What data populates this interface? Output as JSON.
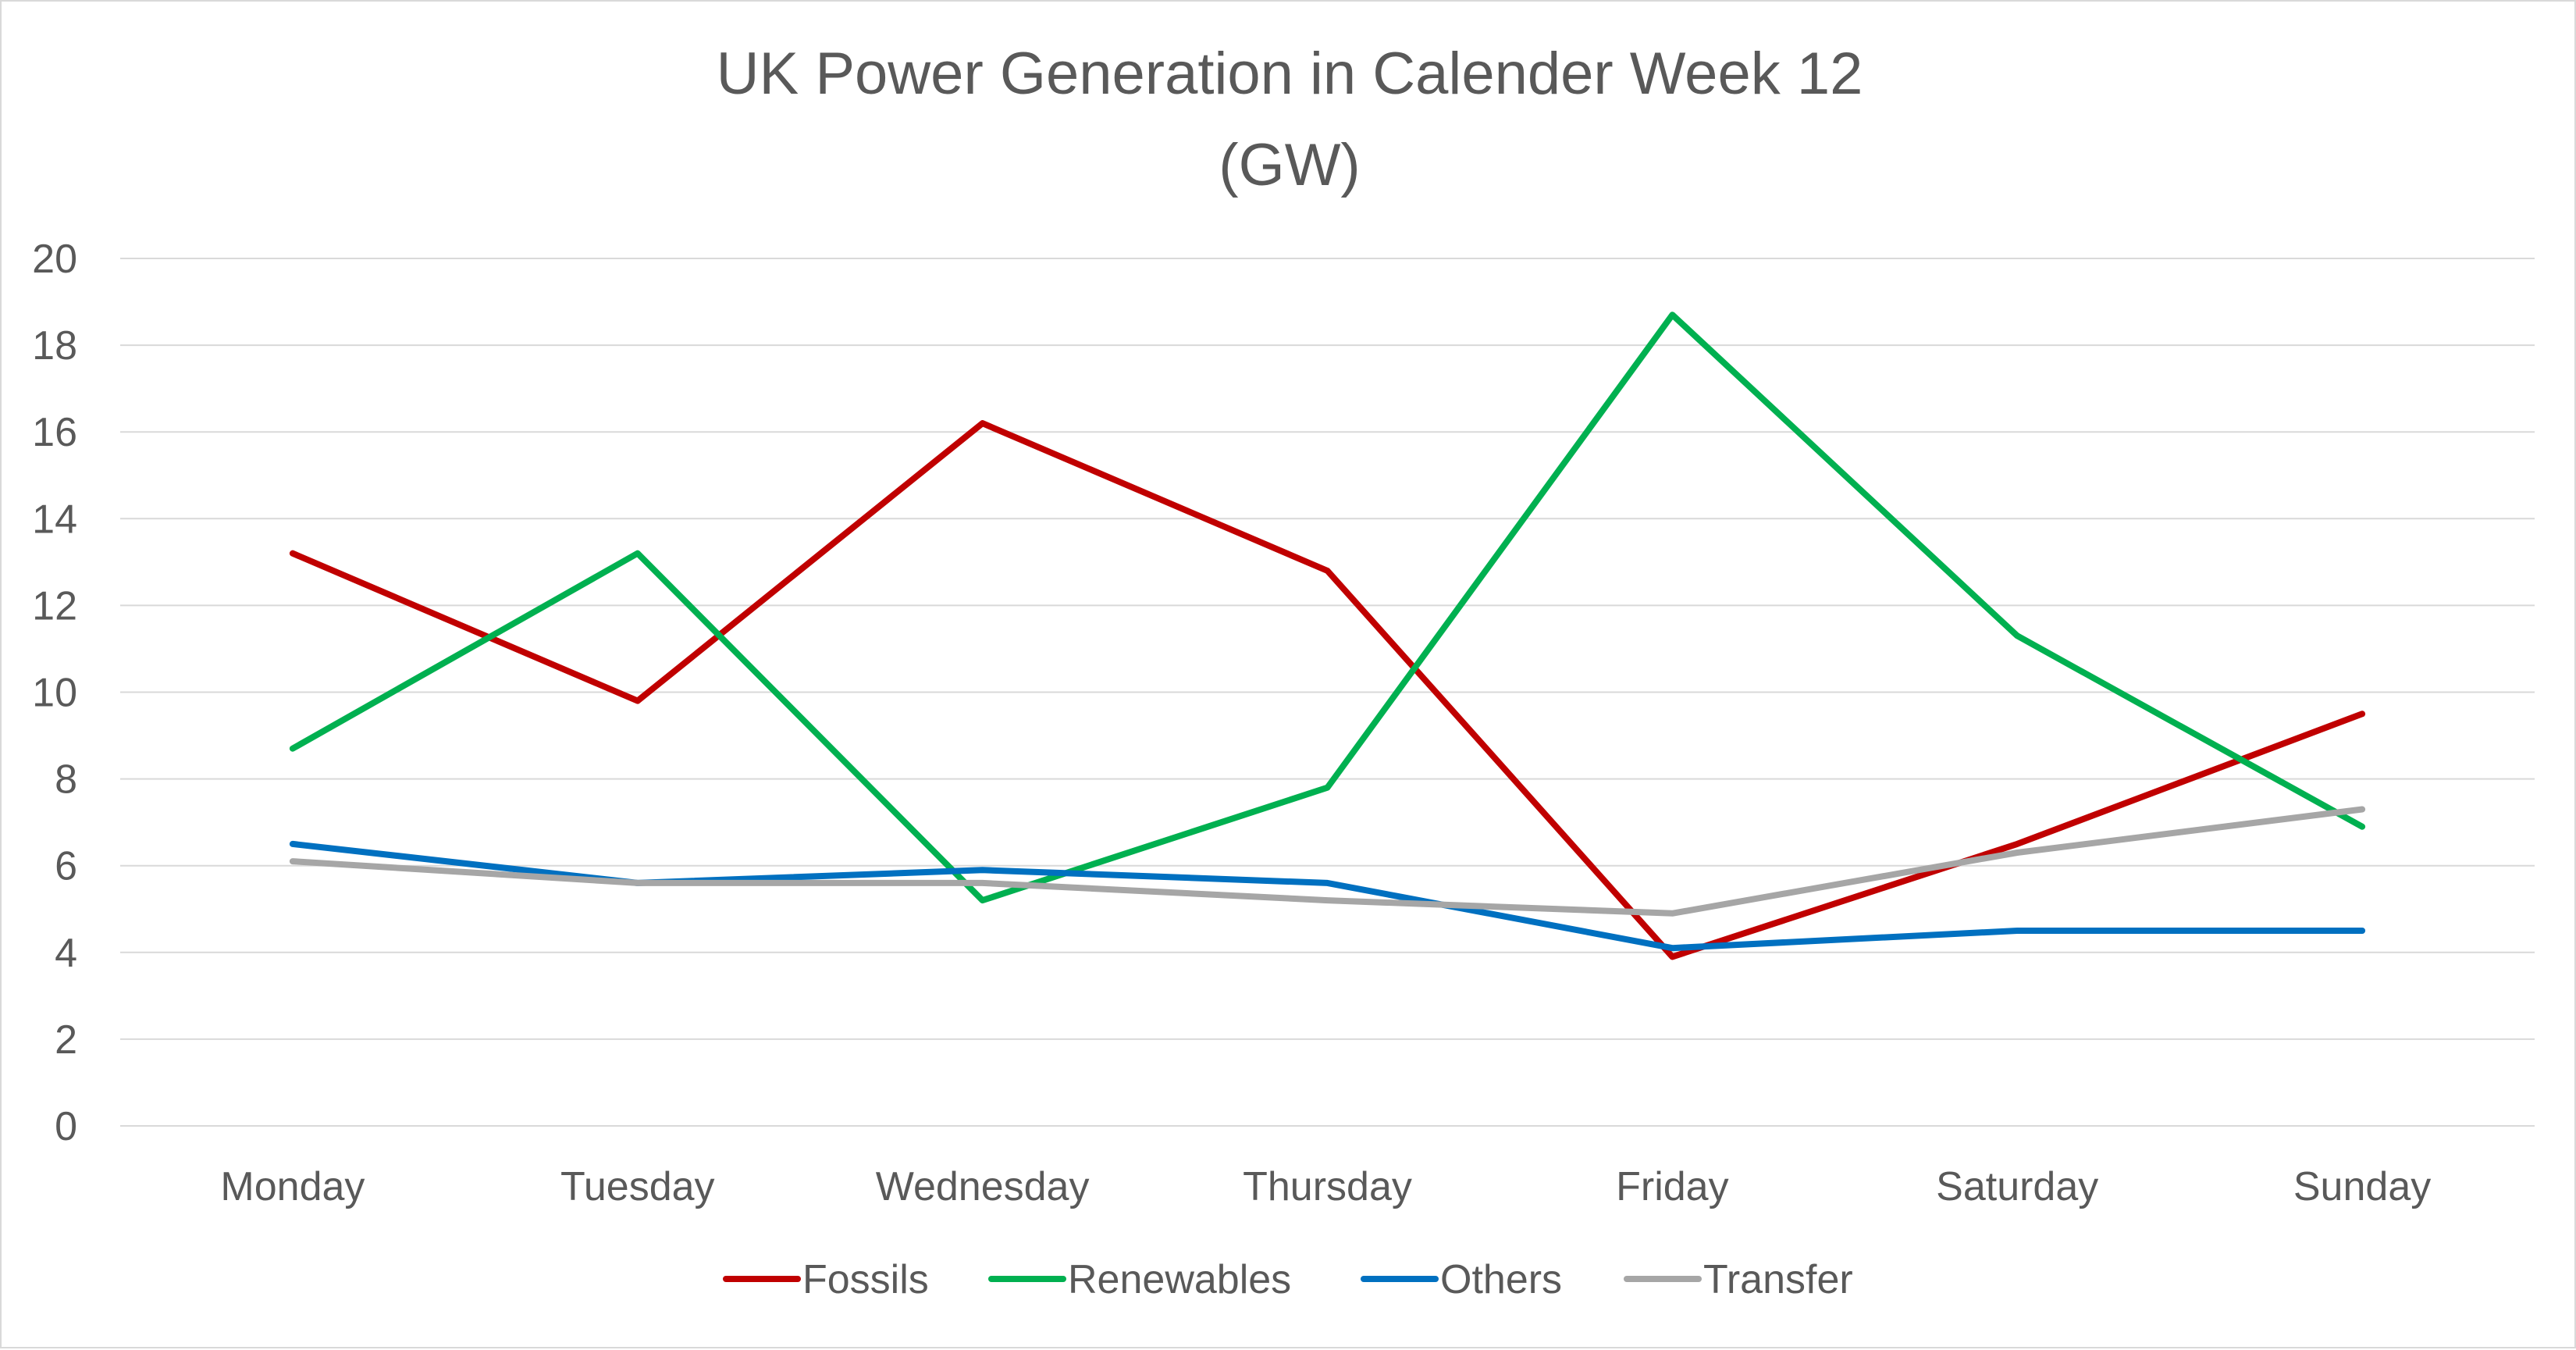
{
  "chart_data": {
    "type": "line",
    "title": "UK Power Generation in Calender Week 12",
    "subtitle": "(GW)",
    "xlabel": "",
    "ylabel": "",
    "categories": [
      "Monday",
      "Tuesday",
      "Wednesday",
      "Thursday",
      "Friday",
      "Saturday",
      "Sunday"
    ],
    "ylim": [
      0,
      20
    ],
    "yticks": [
      0,
      2,
      4,
      6,
      8,
      10,
      12,
      14,
      16,
      18,
      20
    ],
    "grid": true,
    "legend_position": "bottom",
    "series": [
      {
        "name": "Fossils",
        "color": "#c00000",
        "values": [
          13.2,
          9.8,
          16.2,
          12.8,
          3.9,
          6.5,
          9.5
        ]
      },
      {
        "name": "Renewables",
        "color": "#00b050",
        "values": [
          8.7,
          13.2,
          5.2,
          7.8,
          18.7,
          11.3,
          6.9
        ]
      },
      {
        "name": "Others",
        "color": "#0070c0",
        "values": [
          6.5,
          5.6,
          5.9,
          5.6,
          4.1,
          4.5,
          4.5
        ]
      },
      {
        "name": "Transfer",
        "color": "#a6a6a6",
        "values": [
          6.1,
          5.6,
          5.6,
          5.2,
          4.9,
          6.3,
          7.3
        ]
      }
    ]
  }
}
